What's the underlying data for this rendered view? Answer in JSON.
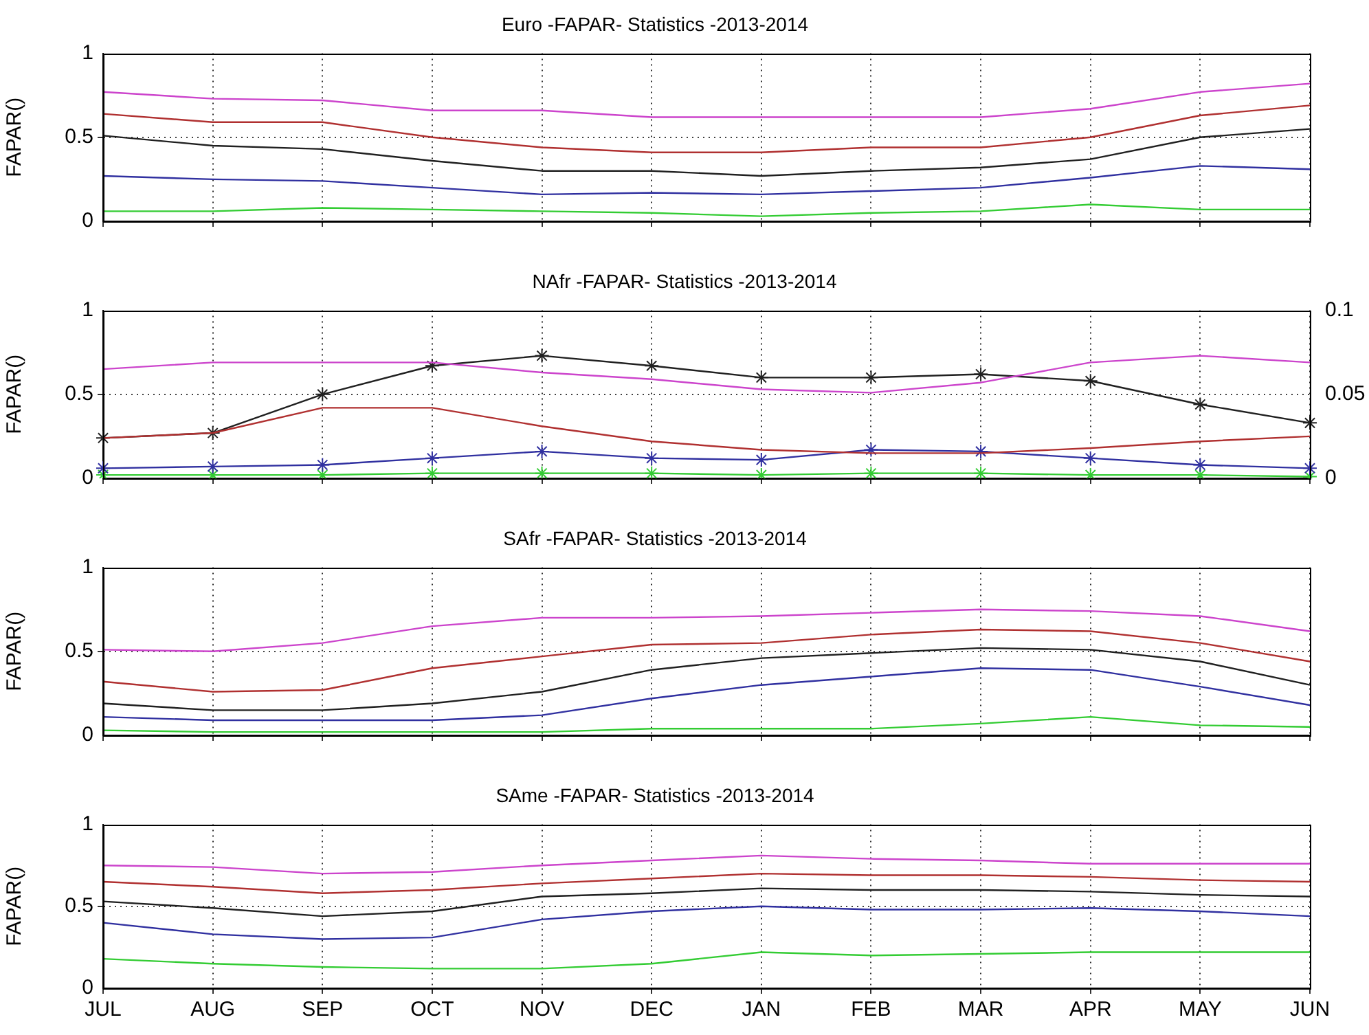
{
  "chart_data": [
    {
      "type": "line",
      "title": "Euro -FAPAR- Statistics -2013-2014",
      "ylabel": "FAPAR()",
      "categories": [
        null,
        null,
        null,
        null,
        null,
        null,
        null,
        null,
        null,
        null,
        null,
        null
      ],
      "ylim": [
        0,
        1
      ],
      "yticks": [
        0,
        0.5,
        1
      ],
      "grid": true,
      "legend": false,
      "marker": "none",
      "tick_labels": "y",
      "series": [
        {
          "color": "#cc44cc",
          "values": [
            0.77,
            0.73,
            0.72,
            0.66,
            0.66,
            0.62,
            0.62,
            0.62,
            0.62,
            0.67,
            0.77,
            0.82
          ]
        },
        {
          "color": "#b03030",
          "values": [
            0.64,
            0.59,
            0.59,
            0.5,
            0.44,
            0.41,
            0.41,
            0.44,
            0.44,
            0.5,
            0.63,
            0.69
          ]
        },
        {
          "color": "#202020",
          "values": [
            0.51,
            0.45,
            0.43,
            0.36,
            0.3,
            0.3,
            0.27,
            0.3,
            0.32,
            0.37,
            0.5,
            0.55
          ]
        },
        {
          "color": "#3030a0",
          "values": [
            0.27,
            0.25,
            0.24,
            0.2,
            0.16,
            0.17,
            0.16,
            0.18,
            0.2,
            0.26,
            0.33,
            0.31
          ]
        },
        {
          "color": "#33cc33",
          "values": [
            0.06,
            0.06,
            0.08,
            0.07,
            0.06,
            0.05,
            0.03,
            0.05,
            0.06,
            0.1,
            0.07,
            0.07
          ]
        }
      ]
    },
    {
      "type": "line",
      "title": "NAfr -FAPAR- Statistics -2013-2014",
      "ylabel": "FAPAR()",
      "categories": [
        null,
        null,
        null,
        null,
        null,
        null,
        null,
        null,
        null,
        null,
        null,
        null
      ],
      "ylim": [
        0,
        1
      ],
      "yticks": [
        0,
        0.5,
        1
      ],
      "y2lim": [
        0,
        0.1
      ],
      "y2ticks": [
        0,
        0.05,
        0.1
      ],
      "grid": true,
      "legend": false,
      "marker": "none",
      "tick_labels": "y",
      "series": [
        {
          "color": "#cc44cc",
          "values": [
            0.65,
            0.69,
            0.69,
            0.69,
            0.63,
            0.59,
            0.53,
            0.51,
            0.57,
            0.69,
            0.73,
            0.69
          ]
        },
        {
          "color": "#b03030",
          "values": [
            0.24,
            0.27,
            0.42,
            0.42,
            0.31,
            0.22,
            0.17,
            0.15,
            0.15,
            0.18,
            0.22,
            0.25
          ]
        },
        {
          "color": "#202020",
          "axis": "y2",
          "marker": "cross",
          "values": [
            0.024,
            0.027,
            0.05,
            0.067,
            0.073,
            0.067,
            0.06,
            0.06,
            0.062,
            0.058,
            0.044,
            0.033
          ]
        },
        {
          "color": "#3030a0",
          "axis": "y2",
          "marker": "cross",
          "values": [
            0.006,
            0.007,
            0.008,
            0.012,
            0.016,
            0.012,
            0.011,
            0.017,
            0.016,
            0.012,
            0.008,
            0.006
          ]
        },
        {
          "color": "#33cc33",
          "axis": "y2",
          "marker": "cross",
          "values": [
            0.002,
            0.002,
            0.002,
            0.003,
            0.003,
            0.003,
            0.002,
            0.003,
            0.003,
            0.002,
            0.002,
            0.001
          ]
        }
      ]
    },
    {
      "type": "line",
      "title": "SAfr -FAPAR- Statistics -2013-2014",
      "ylabel": "FAPAR()",
      "categories": [
        null,
        null,
        null,
        null,
        null,
        null,
        null,
        null,
        null,
        null,
        null,
        null
      ],
      "ylim": [
        0,
        1
      ],
      "yticks": [
        0,
        0.5,
        1
      ],
      "grid": true,
      "legend": false,
      "marker": "none",
      "tick_labels": "y",
      "series": [
        {
          "color": "#cc44cc",
          "values": [
            0.51,
            0.5,
            0.55,
            0.65,
            0.7,
            0.7,
            0.71,
            0.73,
            0.75,
            0.74,
            0.71,
            0.62
          ]
        },
        {
          "color": "#b03030",
          "values": [
            0.32,
            0.26,
            0.27,
            0.4,
            0.47,
            0.54,
            0.55,
            0.6,
            0.63,
            0.62,
            0.55,
            0.44
          ]
        },
        {
          "color": "#202020",
          "values": [
            0.19,
            0.15,
            0.15,
            0.19,
            0.26,
            0.39,
            0.46,
            0.49,
            0.52,
            0.51,
            0.44,
            0.3
          ]
        },
        {
          "color": "#3030a0",
          "values": [
            0.11,
            0.09,
            0.09,
            0.09,
            0.12,
            0.22,
            0.3,
            0.35,
            0.4,
            0.39,
            0.29,
            0.18
          ]
        },
        {
          "color": "#33cc33",
          "values": [
            0.03,
            0.02,
            0.02,
            0.02,
            0.02,
            0.04,
            0.04,
            0.04,
            0.07,
            0.11,
            0.06,
            0.05
          ]
        }
      ]
    },
    {
      "type": "line",
      "title": "SAme -FAPAR- Statistics -2013-2014",
      "ylabel": "FAPAR()",
      "categories": [
        "JUL",
        "AUG",
        "SEP",
        "OCT",
        "NOV",
        "DEC",
        "JAN",
        "FEB",
        "MAR",
        "APR",
        "MAY",
        "JUN"
      ],
      "ylim": [
        0,
        1
      ],
      "yticks": [
        0,
        0.5,
        1
      ],
      "grid": true,
      "legend": false,
      "marker": "none",
      "series": [
        {
          "color": "#cc44cc",
          "values": [
            0.75,
            0.74,
            0.7,
            0.71,
            0.75,
            0.78,
            0.81,
            0.79,
            0.78,
            0.76,
            0.76,
            0.76
          ]
        },
        {
          "color": "#b03030",
          "values": [
            0.65,
            0.62,
            0.58,
            0.6,
            0.64,
            0.67,
            0.7,
            0.69,
            0.69,
            0.68,
            0.66,
            0.65
          ]
        },
        {
          "color": "#202020",
          "values": [
            0.53,
            0.49,
            0.44,
            0.47,
            0.56,
            0.58,
            0.61,
            0.6,
            0.6,
            0.59,
            0.57,
            0.56
          ]
        },
        {
          "color": "#3030a0",
          "values": [
            0.4,
            0.33,
            0.3,
            0.31,
            0.42,
            0.47,
            0.5,
            0.48,
            0.48,
            0.49,
            0.47,
            0.44
          ]
        },
        {
          "color": "#33cc33",
          "values": [
            0.18,
            0.15,
            0.13,
            0.12,
            0.12,
            0.15,
            0.22,
            0.2,
            0.21,
            0.22,
            0.22,
            0.22
          ]
        }
      ]
    }
  ]
}
